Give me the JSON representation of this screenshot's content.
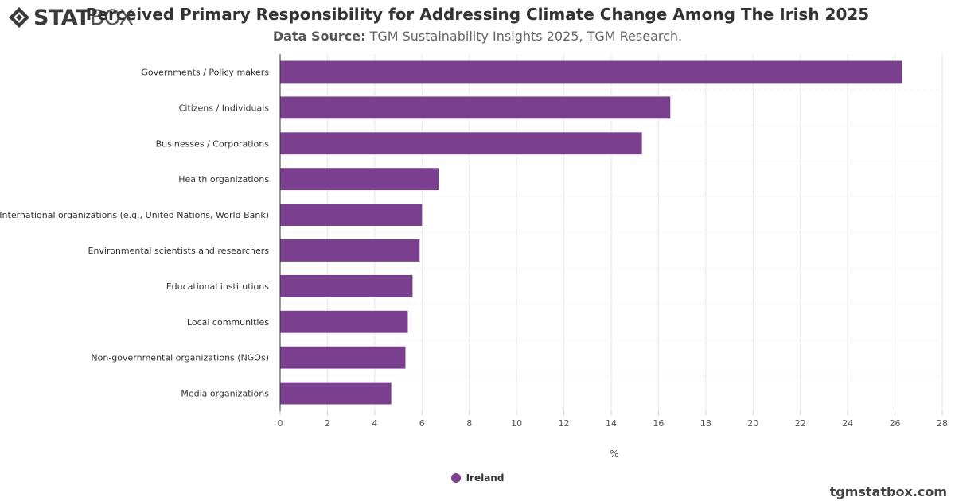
{
  "header": {
    "logo_main": "STAT",
    "logo_light": "BOX",
    "title": "Perceived Primary Responsibility for Addressing Climate Change Among The Irish 2025",
    "source_label": "Data Source:",
    "source_text": " TGM Sustainability Insights 2025, TGM Research."
  },
  "footer": {
    "site": "tgmstatbox.com"
  },
  "colors": {
    "bar": "#7b3f8f",
    "grid": "#e6e6e6",
    "axis": "#333333"
  },
  "chart_data": {
    "type": "bar",
    "orientation": "horizontal",
    "categories": [
      "Governments / Policy makers",
      "Citizens / Individuals",
      "Businesses / Corporations",
      "Health organizations",
      "International organizations (e.g., United Nations, World Bank)",
      "Environmental scientists and researchers",
      "Educational institutions",
      "Local communities",
      "Non-governmental organizations (NGOs)",
      "Media organizations"
    ],
    "series": [
      {
        "name": "Ireland",
        "values": [
          26.3,
          16.5,
          15.3,
          6.7,
          6.0,
          5.9,
          5.6,
          5.4,
          5.3,
          4.7
        ]
      }
    ],
    "xlabel": "%",
    "ylabel": "",
    "xlim": [
      0,
      28
    ],
    "xticks": [
      0,
      2,
      4,
      6,
      8,
      10,
      12,
      14,
      16,
      18,
      20,
      22,
      24,
      26,
      28
    ],
    "grid": true,
    "legend": "bottom-center"
  }
}
